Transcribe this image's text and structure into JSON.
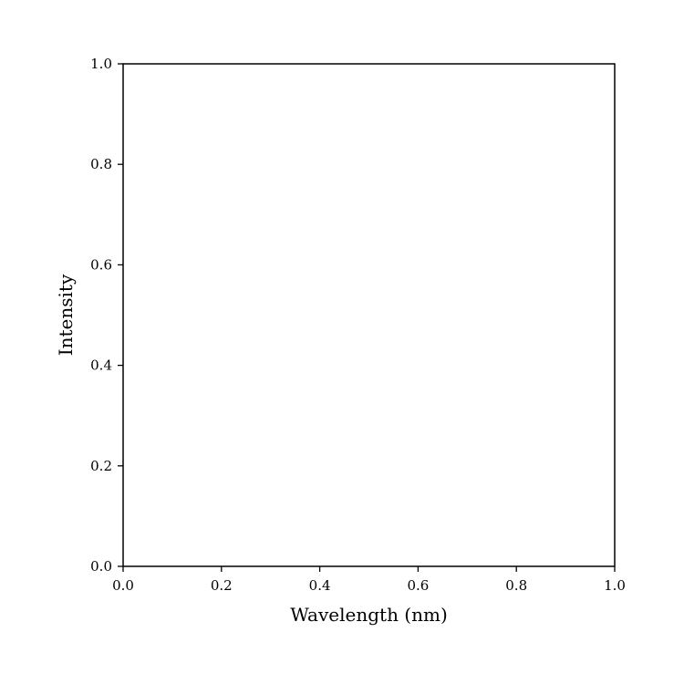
{
  "chart_data": {
    "type": "line",
    "title": "",
    "xlabel": "Wavelength (nm)",
    "ylabel": "Intensity",
    "xlim": [
      0.0,
      1.0
    ],
    "ylim": [
      0.0,
      1.0
    ],
    "x_ticks": [
      0.0,
      0.2,
      0.4,
      0.6,
      0.8,
      1.0
    ],
    "x_tick_labels": [
      "0.0",
      "0.2",
      "0.4",
      "0.6",
      "0.8",
      "1.0"
    ],
    "y_ticks": [
      0.0,
      0.2,
      0.4,
      0.6,
      0.8,
      1.0
    ],
    "y_tick_labels": [
      "0.0",
      "0.2",
      "0.4",
      "0.6",
      "0.8",
      "1.0"
    ],
    "series": [],
    "grid": false,
    "legend": "none",
    "colors": {
      "axes": "#000000",
      "background": "#ffffff"
    }
  }
}
